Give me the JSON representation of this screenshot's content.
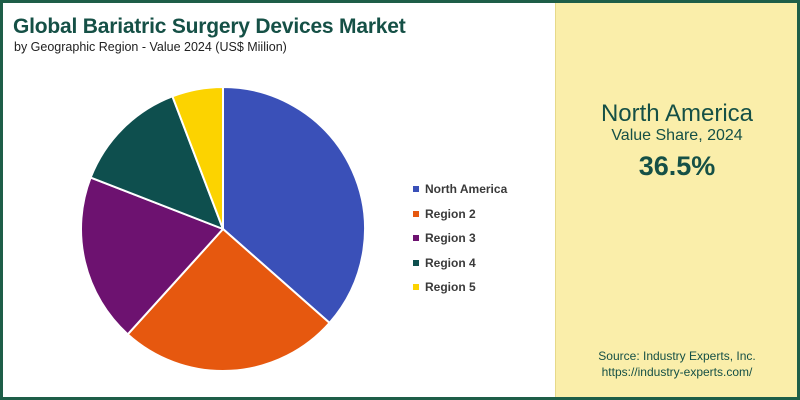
{
  "header": {
    "title": "Global Bariatric Surgery Devices Market",
    "subtitle": "by Geographic Region - Value 2024 (US$ Miilion)"
  },
  "kpi": {
    "region": "North America",
    "caption": "Value Share, 2024",
    "value": "36.5%"
  },
  "source": {
    "line1": "Source: Industry Experts, Inc.",
    "line2": "https://industry-experts.com/"
  },
  "colors": {
    "border": "#1e5e48",
    "panel": "#faeeaa",
    "accent_text": "#155046"
  },
  "chart_data": {
    "type": "pie",
    "title": "Global Bariatric Surgery Devices Market",
    "categories": [
      "North America",
      "Region 2",
      "Region 3",
      "Region 4",
      "Region 5"
    ],
    "values": [
      36.5,
      25.2,
      19.2,
      13.3,
      5.8
    ],
    "unit": "%",
    "colors": [
      "#3a50b8",
      "#e6580f",
      "#6d1270",
      "#0e4f4e",
      "#fcd300"
    ],
    "start_angle_deg": 0,
    "direction": "clockwise",
    "legend_position": "right"
  }
}
